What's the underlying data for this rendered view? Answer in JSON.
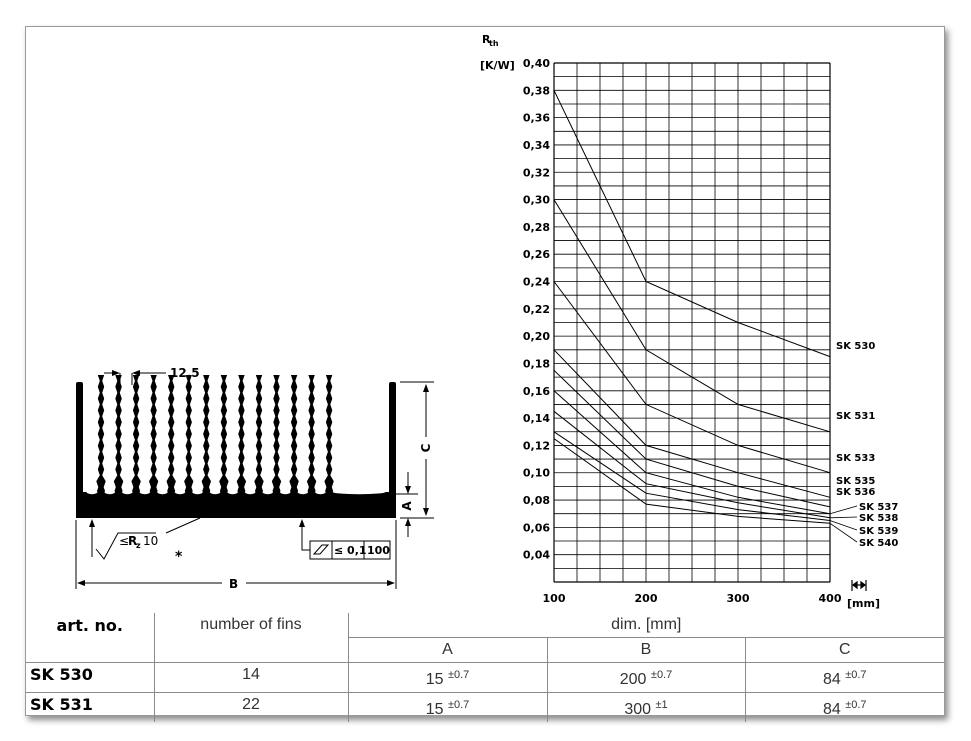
{
  "drawing": {
    "dim_fin_pitch": "12,5",
    "dim_a": "A",
    "dim_b": "B",
    "dim_c": "C",
    "roughness_prefix": "≤",
    "roughness_r": "R",
    "roughness_sub": "z",
    "roughness_value": "10",
    "asterisk": "*",
    "flatness_value": "≤ 0,1",
    "flatness_length": "100"
  },
  "chart_data": {
    "type": "line",
    "ylabel_main": "R",
    "ylabel_sub": "th",
    "yunit": "[K/W]",
    "xunit": "[mm]",
    "xlim": [
      100,
      400
    ],
    "ylim": [
      0.02,
      0.4
    ],
    "grid": true,
    "yticks": [
      "0,40",
      "0,38",
      "0,36",
      "0,34",
      "0,32",
      "0,30",
      "0,28",
      "0,26",
      "0,24",
      "0,22",
      "0,20",
      "0,18",
      "0,16",
      "0,14",
      "0,12",
      "0,10",
      "0,08",
      "0,06",
      "0,04"
    ],
    "ytick_values": [
      0.4,
      0.38,
      0.36,
      0.34,
      0.32,
      0.3,
      0.28,
      0.26,
      0.24,
      0.22,
      0.2,
      0.18,
      0.16,
      0.14,
      0.12,
      0.1,
      0.08,
      0.06,
      0.04
    ],
    "xticks": [
      "100",
      "200",
      "300",
      "400"
    ],
    "xtick_values": [
      100,
      200,
      300,
      400
    ],
    "x": [
      100,
      200,
      300,
      400
    ],
    "series": [
      {
        "name": "SK 530",
        "values": [
          0.38,
          0.24,
          0.21,
          0.185
        ]
      },
      {
        "name": "SK 531",
        "values": [
          0.3,
          0.19,
          0.15,
          0.13
        ]
      },
      {
        "name": "SK 533",
        "values": [
          0.24,
          0.15,
          0.12,
          0.1
        ]
      },
      {
        "name": "SK 535",
        "values": [
          0.19,
          0.12,
          0.1,
          0.082
        ]
      },
      {
        "name": "SK 536",
        "values": [
          0.175,
          0.11,
          0.09,
          0.075
        ]
      },
      {
        "name": "SK 537",
        "values": [
          0.16,
          0.1,
          0.082,
          0.07
        ]
      },
      {
        "name": "SK 538",
        "values": [
          0.145,
          0.092,
          0.078,
          0.067
        ]
      },
      {
        "name": "SK 539",
        "values": [
          0.13,
          0.085,
          0.073,
          0.065
        ]
      },
      {
        "name": "SK 540",
        "values": [
          0.125,
          0.077,
          0.068,
          0.063
        ]
      }
    ]
  },
  "table": {
    "art_no": "art. no.",
    "fins_header": "number of fins",
    "dim_header": "dim. [mm]",
    "col_a": "A",
    "col_b": "B",
    "col_c": "C",
    "rows": [
      {
        "art": "SK 530",
        "fins": "14",
        "a": "15",
        "a_tol": "±0.7",
        "b": "200",
        "b_tol": "±0.7",
        "c": "84",
        "c_tol": "±0.7"
      },
      {
        "art": "SK 531",
        "fins": "22",
        "a": "15",
        "a_tol": "±0.7",
        "b": "300",
        "b_tol": "±1",
        "c": "84",
        "c_tol": "±0.7"
      }
    ]
  }
}
